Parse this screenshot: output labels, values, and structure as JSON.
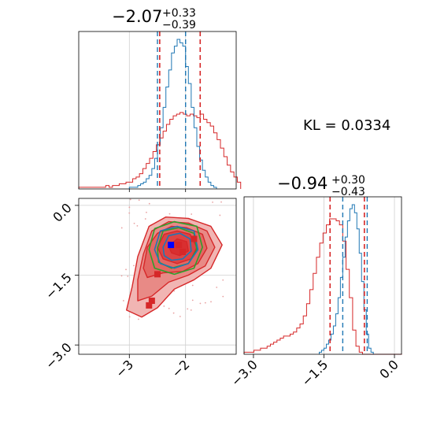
{
  "chart_data": {
    "type": "corner",
    "kl_text": "KL = 0.0334",
    "colors": {
      "red": "#d62728",
      "blue": "#1f77b4",
      "green": "#2ca02c",
      "grid": "#cfcfcf"
    },
    "param1": {
      "title_main": "−2.07",
      "title_plus": "+0.33",
      "title_minus": "−0.39",
      "range": [
        -3.9,
        -1.1
      ],
      "ticks": [
        -3,
        -2
      ],
      "tick_labels": [
        "−3",
        "−2"
      ],
      "red_quantiles": [
        -2.46,
        -1.74
      ],
      "blue_quantiles": [
        -2.5,
        -2.0
      ],
      "red_hist": {
        "edges_start": -3.9,
        "bin_width": 0.06,
        "counts": [
          1,
          1,
          1,
          1,
          1,
          1,
          1,
          1,
          2,
          1,
          2,
          2,
          3,
          3,
          4,
          4,
          6,
          7,
          9,
          12,
          15,
          18,
          22,
          26,
          30,
          34,
          38,
          41,
          43,
          44,
          45,
          44,
          43,
          44,
          43,
          42,
          44,
          41,
          39,
          37,
          33,
          29,
          24,
          19,
          14,
          10,
          7,
          4
        ]
      },
      "blue_hist": {
        "edges_start": -3.0,
        "bin_width": 0.05,
        "counts": [
          1,
          1,
          1,
          2,
          3,
          4,
          6,
          8,
          12,
          18,
          26,
          36,
          48,
          60,
          70,
          80,
          84,
          88,
          86,
          84,
          72,
          62,
          48,
          36,
          25,
          17,
          11,
          7,
          4,
          2,
          1
        ]
      }
    },
    "param2": {
      "title_main": "−0.94",
      "title_plus": "+0.30",
      "title_minus": "−0.43",
      "range": [
        -3.2,
        0.15
      ],
      "ticks": [
        -3.0,
        -1.5,
        0.0
      ],
      "tick_labels": [
        "−3.0",
        "−1.5",
        "0.0"
      ],
      "red_quantiles": [
        -1.37,
        -0.64
      ],
      "blue_quantiles": [
        -1.1,
        -0.58
      ],
      "red_hist": {
        "edges_start": -3.2,
        "bin_width": 0.07,
        "counts": [
          1,
          1,
          1,
          2,
          2,
          3,
          3,
          4,
          5,
          6,
          7,
          8,
          9,
          9,
          10,
          11,
          13,
          15,
          19,
          25,
          32,
          40,
          48,
          55,
          60,
          64,
          67,
          67,
          66,
          64,
          56,
          42,
          28,
          12,
          4,
          1,
          0,
          0,
          0,
          0,
          0,
          0,
          0,
          0,
          0,
          0,
          0,
          0
        ]
      },
      "blue_hist": {
        "edges_start": -1.6,
        "bin_width": 0.05,
        "counts": [
          1,
          2,
          3,
          5,
          7,
          10,
          14,
          20,
          28,
          38,
          48,
          58,
          66,
          72,
          74,
          70,
          62,
          50,
          36,
          22,
          10,
          3,
          1
        ]
      }
    },
    "joint": {
      "xlim": [
        -3.9,
        -1.1
      ],
      "ylim": [
        -3.2,
        0.15
      ],
      "xticks": [
        -3,
        -2
      ],
      "xtick_labels": [
        "−3",
        "−2"
      ],
      "yticks": [
        0.0,
        -1.5,
        -3.0
      ],
      "ytick_labels": [
        "0.0",
        "−1.5",
        "−3.0"
      ],
      "red_levels": [
        [
          [
            -2.95,
            -1.75
          ],
          [
            -2.85,
            -1.1
          ],
          [
            -2.65,
            -0.45
          ],
          [
            -2.35,
            -0.25
          ],
          [
            -1.95,
            -0.28
          ],
          [
            -1.55,
            -0.45
          ],
          [
            -1.35,
            -0.85
          ],
          [
            -1.55,
            -1.35
          ],
          [
            -1.85,
            -1.6
          ],
          [
            -2.2,
            -1.8
          ],
          [
            -2.5,
            -2.2
          ],
          [
            -2.78,
            -2.4
          ],
          [
            -3.05,
            -2.25
          ]
        ],
        [
          [
            -2.85,
            -1.6
          ],
          [
            -2.75,
            -1.05
          ],
          [
            -2.6,
            -0.55
          ],
          [
            -2.3,
            -0.35
          ],
          [
            -1.95,
            -0.38
          ],
          [
            -1.62,
            -0.55
          ],
          [
            -1.48,
            -0.9
          ],
          [
            -1.65,
            -1.3
          ],
          [
            -1.95,
            -1.5
          ],
          [
            -2.3,
            -1.65
          ],
          [
            -2.6,
            -1.95
          ],
          [
            -2.85,
            -2.05
          ]
        ],
        [
          [
            -2.75,
            -1.35
          ],
          [
            -2.68,
            -0.9
          ],
          [
            -2.5,
            -0.6
          ],
          [
            -2.25,
            -0.45
          ],
          [
            -1.98,
            -0.48
          ],
          [
            -1.7,
            -0.62
          ],
          [
            -1.62,
            -0.92
          ],
          [
            -1.78,
            -1.25
          ],
          [
            -2.05,
            -1.42
          ],
          [
            -2.4,
            -1.45
          ],
          [
            -2.68,
            -1.55
          ]
        ],
        [
          [
            -2.5,
            -0.9
          ],
          [
            -2.38,
            -0.62
          ],
          [
            -2.15,
            -0.55
          ],
          [
            -1.92,
            -0.62
          ],
          [
            -1.8,
            -0.9
          ],
          [
            -1.9,
            -1.15
          ],
          [
            -2.15,
            -1.25
          ],
          [
            -2.4,
            -1.15
          ]
        ],
        [
          [
            -2.3,
            -0.88
          ],
          [
            -2.15,
            -0.72
          ],
          [
            -1.98,
            -0.78
          ],
          [
            -1.95,
            -0.98
          ],
          [
            -2.1,
            -1.08
          ],
          [
            -2.25,
            -1.02
          ]
        ]
      ],
      "blue_contours": [
        [
          [
            -2.55,
            -0.95
          ],
          [
            -2.45,
            -0.55
          ],
          [
            -2.15,
            -0.45
          ],
          [
            -1.85,
            -0.55
          ],
          [
            -1.78,
            -0.95
          ],
          [
            -1.95,
            -1.25
          ],
          [
            -2.2,
            -1.35
          ],
          [
            -2.45,
            -1.25
          ]
        ],
        [
          [
            -2.4,
            -0.9
          ],
          [
            -2.3,
            -0.65
          ],
          [
            -2.1,
            -0.6
          ],
          [
            -1.92,
            -0.72
          ],
          [
            -1.9,
            -0.98
          ],
          [
            -2.05,
            -1.15
          ],
          [
            -2.25,
            -1.18
          ],
          [
            -2.38,
            -1.08
          ]
        ]
      ],
      "green_contours": [
        [
          [
            -2.65,
            -0.95
          ],
          [
            -2.55,
            -0.5
          ],
          [
            -2.2,
            -0.35
          ],
          [
            -1.8,
            -0.45
          ],
          [
            -1.7,
            -0.9
          ],
          [
            -1.85,
            -1.35
          ],
          [
            -2.2,
            -1.48
          ],
          [
            -2.55,
            -1.35
          ]
        ],
        [
          [
            -2.5,
            -0.92
          ],
          [
            -2.4,
            -0.55
          ],
          [
            -2.12,
            -0.48
          ],
          [
            -1.85,
            -0.6
          ],
          [
            -1.8,
            -0.95
          ],
          [
            -1.95,
            -1.25
          ],
          [
            -2.25,
            -1.35
          ],
          [
            -2.48,
            -1.22
          ]
        ]
      ],
      "blue_point": [
        -2.26,
        -0.85
      ],
      "red_points": [
        [
          -2.12,
          -0.85
        ],
        [
          -2.05,
          -1.0
        ],
        [
          -1.85,
          -0.72
        ],
        [
          -2.5,
          -1.48
        ],
        [
          -2.6,
          -2.05
        ],
        [
          -2.65,
          -2.15
        ]
      ]
    }
  }
}
